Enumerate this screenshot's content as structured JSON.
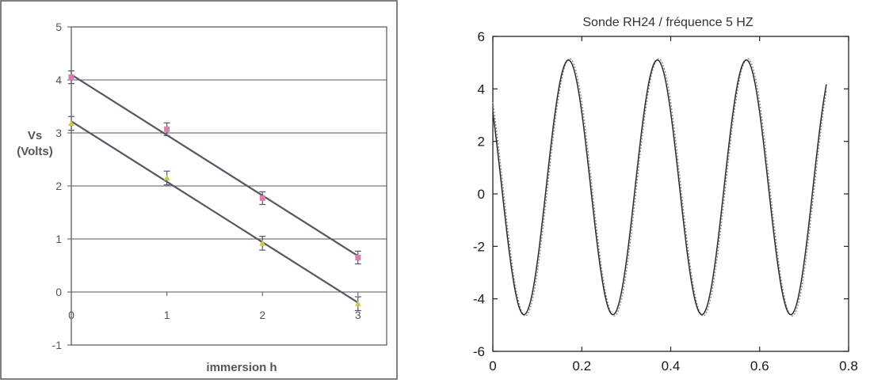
{
  "chart_data": [
    {
      "type": "scatter",
      "title": "",
      "xlabel": "immersion h",
      "ylabel_line1": "Vs",
      "ylabel_line2": "(Volts)",
      "xlim": [
        0,
        3.3
      ],
      "ylim": [
        -1,
        5
      ],
      "xticks": [
        "0",
        "1",
        "2",
        "3"
      ],
      "yticks": [
        "-1",
        "0",
        "1",
        "2",
        "3",
        "4",
        "5"
      ],
      "grid": "horizontal",
      "series": [
        {
          "color": "#d97fb0",
          "x": [
            0,
            1,
            2,
            3
          ],
          "y": [
            4.05,
            3.07,
            1.77,
            0.65
          ],
          "err": [
            0.12,
            0.12,
            0.12,
            0.12
          ],
          "fit": [
            [
              0,
              4.1
            ],
            [
              3,
              0.68
            ]
          ]
        },
        {
          "color": "#c8c84a",
          "x": [
            0,
            1,
            2,
            3
          ],
          "y": [
            3.18,
            2.15,
            0.92,
            -0.22
          ],
          "err": [
            0.13,
            0.13,
            0.13,
            0.13
          ],
          "fit": [
            [
              0,
              3.22
            ],
            [
              3,
              -0.2
            ]
          ]
        }
      ]
    },
    {
      "type": "line",
      "title": "Sonde RH24 / fréquence 5  HZ",
      "xlim": [
        0,
        0.8
      ],
      "ylim": [
        -6,
        6
      ],
      "xticks": [
        "0",
        "0.2",
        "0.4",
        "0.6",
        "0.8"
      ],
      "yticks": [
        "6",
        "4",
        "2",
        "0",
        "-2",
        "-4",
        "-6"
      ],
      "signal": {
        "frequency_hz": 5,
        "amplitude": 4.9,
        "offset": 0.25,
        "peak_time": 0.17,
        "x_range": [
          0,
          0.75
        ]
      },
      "series": [
        {
          "style": "solid",
          "color": "#2a2a2a"
        },
        {
          "style": "dotted",
          "color": "#888888"
        }
      ]
    }
  ]
}
